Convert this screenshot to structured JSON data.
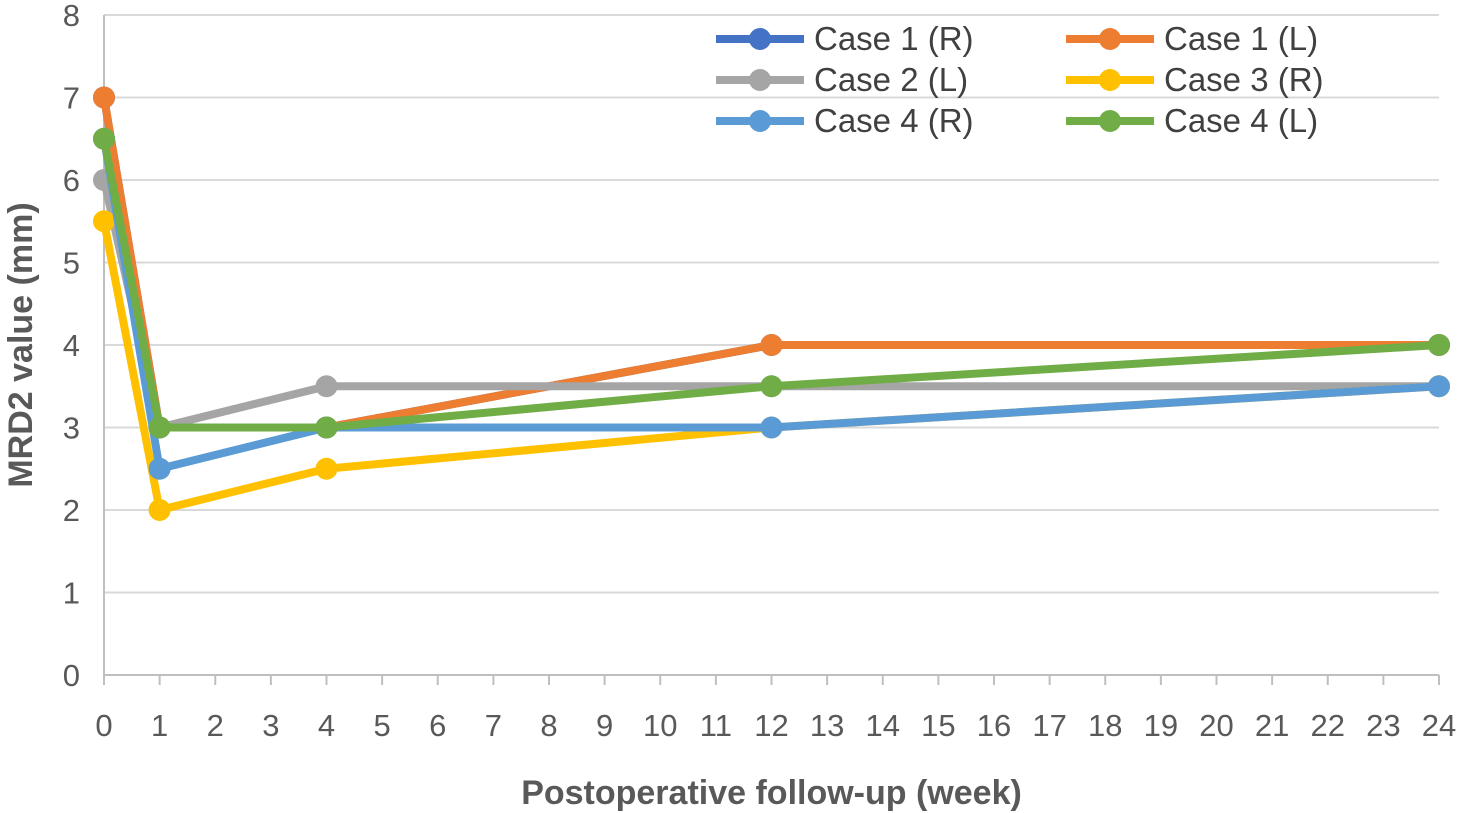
{
  "chart_data": {
    "type": "line",
    "title": "",
    "xlabel": "Postoperative follow-up (week)",
    "ylabel": "MRD2 value (mm)",
    "xlim": [
      0,
      24
    ],
    "ylim": [
      0,
      8
    ],
    "x_ticks": [
      0,
      1,
      2,
      3,
      4,
      5,
      6,
      7,
      8,
      9,
      10,
      11,
      12,
      13,
      14,
      15,
      16,
      17,
      18,
      19,
      20,
      21,
      22,
      23,
      24
    ],
    "y_ticks": [
      0,
      1,
      2,
      3,
      4,
      5,
      6,
      7,
      8
    ],
    "grid": "horizontal",
    "legend_position": "top-right",
    "x": [
      0,
      1,
      4,
      12,
      24
    ],
    "series": [
      {
        "name": "Case 1 (R)",
        "color": "#4472C4",
        "values": [
          7,
          3,
          3,
          4,
          4
        ]
      },
      {
        "name": "Case 1 (L)",
        "color": "#ED7D31",
        "values": [
          7,
          3,
          3,
          4,
          4
        ]
      },
      {
        "name": "Case 2 (L)",
        "color": "#A5A5A5",
        "values": [
          6,
          3,
          3.5,
          3.5,
          3.5
        ]
      },
      {
        "name": "Case 3 (R)",
        "color": "#FFC000",
        "values": [
          5.5,
          2,
          2.5,
          3,
          3.5
        ]
      },
      {
        "name": "Case 4 (R)",
        "color": "#5B9BD5",
        "values": [
          6.5,
          2.5,
          3,
          3,
          3.5
        ]
      },
      {
        "name": "Case 4 (L)",
        "color": "#70AD47",
        "values": [
          6.5,
          3,
          3,
          3.5,
          4
        ]
      }
    ]
  }
}
